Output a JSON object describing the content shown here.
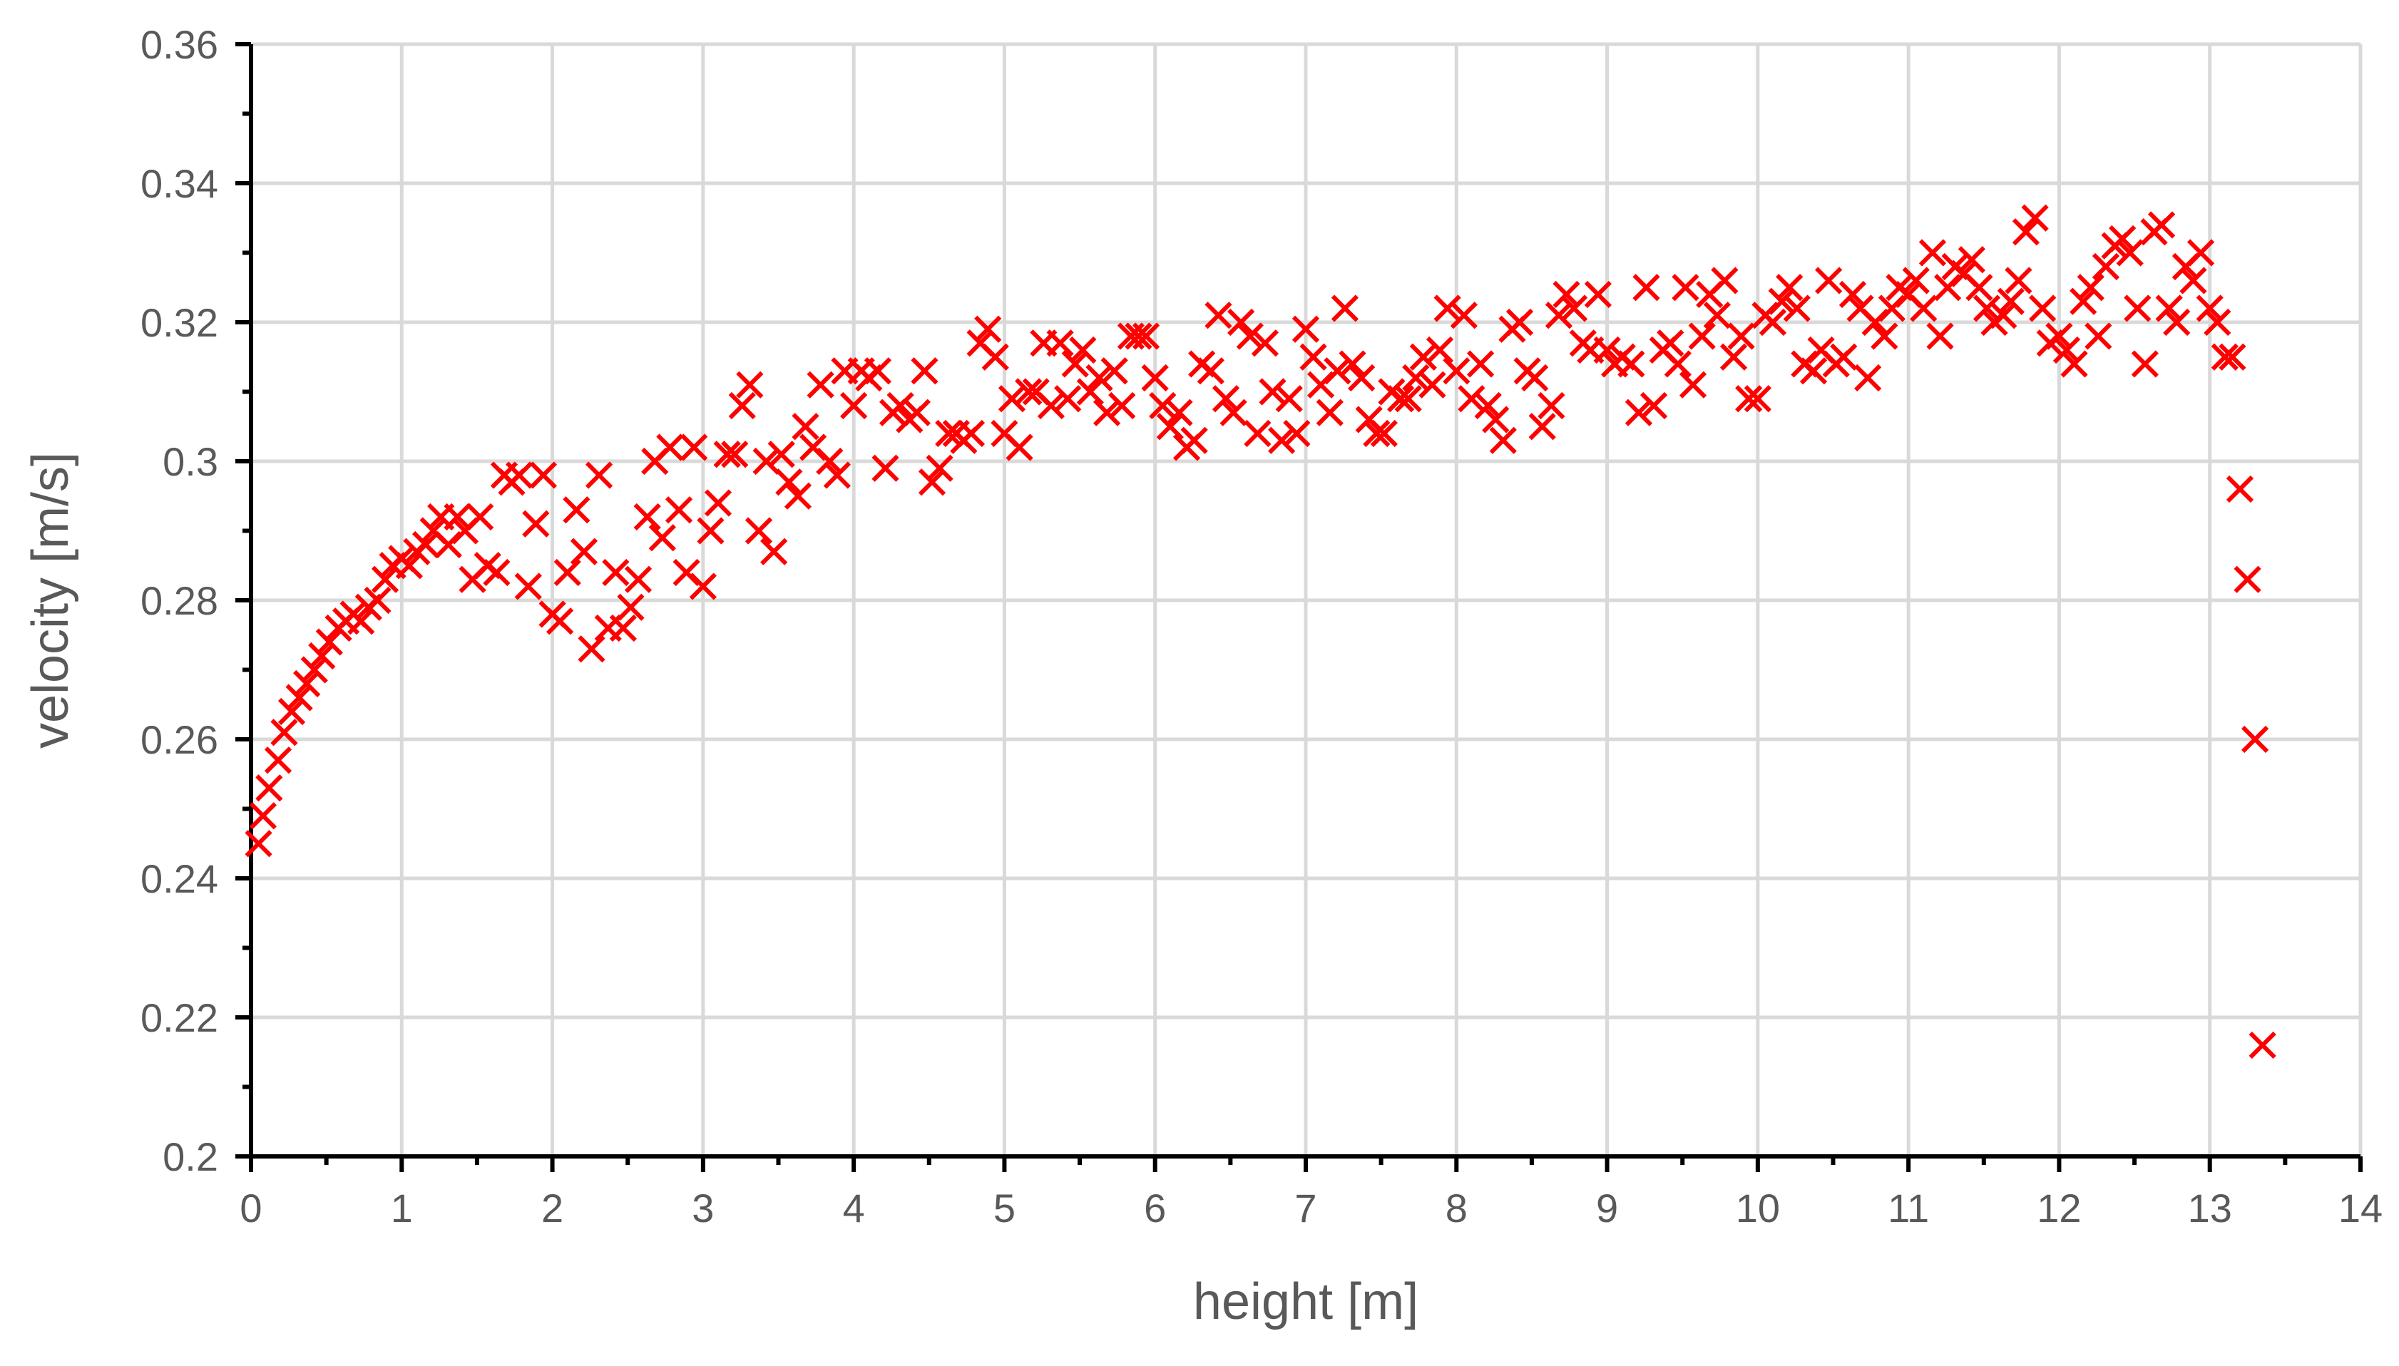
{
  "chart_data": {
    "type": "scatter",
    "xlabel": "height [m]",
    "ylabel": "velocity [m/s]",
    "xlim": [
      0,
      14
    ],
    "ylim": [
      0.2,
      0.36
    ],
    "xticks": [
      "0",
      "1",
      "2",
      "3",
      "4",
      "5",
      "6",
      "7",
      "8",
      "9",
      "10",
      "11",
      "12",
      "13",
      "14"
    ],
    "yticks": [
      "0.2",
      "0.22",
      "0.24",
      "0.26",
      "0.28",
      "0.3",
      "0.32",
      "0.34",
      "0.36"
    ],
    "grid": true,
    "marker": "x",
    "marker_color": "#ff0000",
    "series": [
      {
        "points": [
          [
            0.05,
            0.245
          ],
          [
            0.08,
            0.249
          ],
          [
            0.12,
            0.253
          ],
          [
            0.18,
            0.257
          ],
          [
            0.22,
            0.261
          ],
          [
            0.27,
            0.264
          ],
          [
            0.32,
            0.266
          ],
          [
            0.37,
            0.268
          ],
          [
            0.42,
            0.27
          ],
          [
            0.47,
            0.272
          ],
          [
            0.52,
            0.274
          ],
          [
            0.58,
            0.276
          ],
          [
            0.63,
            0.277
          ],
          [
            0.68,
            0.278
          ],
          [
            0.73,
            0.277
          ],
          [
            0.78,
            0.279
          ],
          [
            0.84,
            0.28
          ],
          [
            0.89,
            0.283
          ],
          [
            0.94,
            0.285
          ],
          [
            1.0,
            0.286
          ],
          [
            1.05,
            0.285
          ],
          [
            1.1,
            0.287
          ],
          [
            1.16,
            0.288
          ],
          [
            1.21,
            0.29
          ],
          [
            1.26,
            0.292
          ],
          [
            1.31,
            0.288
          ],
          [
            1.37,
            0.292
          ],
          [
            1.42,
            0.29
          ],
          [
            1.47,
            0.283
          ],
          [
            1.52,
            0.292
          ],
          [
            1.57,
            0.285
          ],
          [
            1.63,
            0.284
          ],
          [
            1.68,
            0.298
          ],
          [
            1.73,
            0.297
          ],
          [
            1.78,
            0.298
          ],
          [
            1.84,
            0.282
          ],
          [
            1.89,
            0.291
          ],
          [
            1.94,
            0.298
          ],
          [
            2.0,
            0.278
          ],
          [
            2.05,
            0.277
          ],
          [
            2.1,
            0.284
          ],
          [
            2.16,
            0.293
          ],
          [
            2.21,
            0.287
          ],
          [
            2.26,
            0.273
          ],
          [
            2.31,
            0.298
          ],
          [
            2.37,
            0.276
          ],
          [
            2.42,
            0.284
          ],
          [
            2.47,
            0.276
          ],
          [
            2.52,
            0.279
          ],
          [
            2.57,
            0.283
          ],
          [
            2.63,
            0.292
          ],
          [
            2.68,
            0.3
          ],
          [
            2.73,
            0.289
          ],
          [
            2.78,
            0.302
          ],
          [
            2.84,
            0.293
          ],
          [
            2.89,
            0.284
          ],
          [
            2.94,
            0.302
          ],
          [
            3.0,
            0.282
          ],
          [
            3.05,
            0.29
          ],
          [
            3.1,
            0.294
          ],
          [
            3.16,
            0.301
          ],
          [
            3.21,
            0.301
          ],
          [
            3.26,
            0.308
          ],
          [
            3.31,
            0.311
          ],
          [
            3.37,
            0.29
          ],
          [
            3.42,
            0.3
          ],
          [
            3.47,
            0.287
          ],
          [
            3.52,
            0.301
          ],
          [
            3.57,
            0.297
          ],
          [
            3.63,
            0.295
          ],
          [
            3.68,
            0.305
          ],
          [
            3.73,
            0.302
          ],
          [
            3.78,
            0.311
          ],
          [
            3.84,
            0.3
          ],
          [
            3.89,
            0.298
          ],
          [
            3.94,
            0.313
          ],
          [
            4.0,
            0.308
          ],
          [
            4.05,
            0.313
          ],
          [
            4.1,
            0.312
          ],
          [
            4.16,
            0.313
          ],
          [
            4.21,
            0.299
          ],
          [
            4.26,
            0.307
          ],
          [
            4.31,
            0.308
          ],
          [
            4.37,
            0.306
          ],
          [
            4.42,
            0.307
          ],
          [
            4.47,
            0.313
          ],
          [
            4.52,
            0.297
          ],
          [
            4.57,
            0.299
          ],
          [
            4.63,
            0.304
          ],
          [
            4.68,
            0.304
          ],
          [
            4.73,
            0.303
          ],
          [
            4.78,
            0.304
          ],
          [
            4.84,
            0.317
          ],
          [
            4.89,
            0.319
          ],
          [
            4.94,
            0.315
          ],
          [
            5.0,
            0.304
          ],
          [
            5.05,
            0.309
          ],
          [
            5.1,
            0.302
          ],
          [
            5.16,
            0.31
          ],
          [
            5.21,
            0.31
          ],
          [
            5.26,
            0.317
          ],
          [
            5.31,
            0.308
          ],
          [
            5.37,
            0.317
          ],
          [
            5.42,
            0.309
          ],
          [
            5.47,
            0.314
          ],
          [
            5.52,
            0.316
          ],
          [
            5.57,
            0.31
          ],
          [
            5.63,
            0.312
          ],
          [
            5.68,
            0.307
          ],
          [
            5.73,
            0.313
          ],
          [
            5.78,
            0.308
          ],
          [
            5.84,
            0.318
          ],
          [
            5.89,
            0.318
          ],
          [
            5.94,
            0.318
          ],
          [
            6.0,
            0.312
          ],
          [
            6.05,
            0.308
          ],
          [
            6.1,
            0.305
          ],
          [
            6.16,
            0.307
          ],
          [
            6.21,
            0.302
          ],
          [
            6.26,
            0.303
          ],
          [
            6.31,
            0.314
          ],
          [
            6.37,
            0.313
          ],
          [
            6.42,
            0.321
          ],
          [
            6.47,
            0.309
          ],
          [
            6.52,
            0.307
          ],
          [
            6.57,
            0.32
          ],
          [
            6.63,
            0.318
          ],
          [
            6.68,
            0.304
          ],
          [
            6.73,
            0.317
          ],
          [
            6.78,
            0.31
          ],
          [
            6.84,
            0.303
          ],
          [
            6.89,
            0.309
          ],
          [
            6.94,
            0.304
          ],
          [
            7.0,
            0.319
          ],
          [
            7.05,
            0.315
          ],
          [
            7.1,
            0.311
          ],
          [
            7.16,
            0.307
          ],
          [
            7.21,
            0.313
          ],
          [
            7.26,
            0.322
          ],
          [
            7.31,
            0.314
          ],
          [
            7.37,
            0.312
          ],
          [
            7.42,
            0.306
          ],
          [
            7.47,
            0.304
          ],
          [
            7.52,
            0.304
          ],
          [
            7.57,
            0.31
          ],
          [
            7.63,
            0.309
          ],
          [
            7.68,
            0.309
          ],
          [
            7.73,
            0.312
          ],
          [
            7.78,
            0.315
          ],
          [
            7.84,
            0.311
          ],
          [
            7.89,
            0.316
          ],
          [
            7.94,
            0.322
          ],
          [
            8.0,
            0.313
          ],
          [
            8.05,
            0.321
          ],
          [
            8.1,
            0.309
          ],
          [
            8.16,
            0.314
          ],
          [
            8.21,
            0.308
          ],
          [
            8.26,
            0.306
          ],
          [
            8.31,
            0.303
          ],
          [
            8.37,
            0.319
          ],
          [
            8.42,
            0.32
          ],
          [
            8.47,
            0.313
          ],
          [
            8.52,
            0.312
          ],
          [
            8.57,
            0.305
          ],
          [
            8.63,
            0.308
          ],
          [
            8.68,
            0.321
          ],
          [
            8.73,
            0.324
          ],
          [
            8.78,
            0.322
          ],
          [
            8.84,
            0.317
          ],
          [
            8.89,
            0.316
          ],
          [
            8.94,
            0.324
          ],
          [
            9.0,
            0.316
          ],
          [
            9.05,
            0.314
          ],
          [
            9.1,
            0.315
          ],
          [
            9.16,
            0.314
          ],
          [
            9.21,
            0.307
          ],
          [
            9.26,
            0.325
          ],
          [
            9.31,
            0.308
          ],
          [
            9.37,
            0.316
          ],
          [
            9.42,
            0.317
          ],
          [
            9.47,
            0.314
          ],
          [
            9.52,
            0.325
          ],
          [
            9.57,
            0.311
          ],
          [
            9.63,
            0.318
          ],
          [
            9.68,
            0.324
          ],
          [
            9.73,
            0.321
          ],
          [
            9.78,
            0.326
          ],
          [
            9.84,
            0.315
          ],
          [
            9.89,
            0.318
          ],
          [
            9.94,
            0.309
          ],
          [
            10.0,
            0.309
          ],
          [
            10.05,
            0.321
          ],
          [
            10.1,
            0.32
          ],
          [
            10.16,
            0.323
          ],
          [
            10.21,
            0.325
          ],
          [
            10.26,
            0.322
          ],
          [
            10.31,
            0.314
          ],
          [
            10.37,
            0.313
          ],
          [
            10.42,
            0.316
          ],
          [
            10.47,
            0.326
          ],
          [
            10.52,
            0.314
          ],
          [
            10.57,
            0.315
          ],
          [
            10.63,
            0.324
          ],
          [
            10.68,
            0.322
          ],
          [
            10.73,
            0.312
          ],
          [
            10.78,
            0.32
          ],
          [
            10.84,
            0.318
          ],
          [
            10.89,
            0.322
          ],
          [
            10.94,
            0.325
          ],
          [
            11.0,
            0.324
          ],
          [
            11.05,
            0.326
          ],
          [
            11.1,
            0.322
          ],
          [
            11.16,
            0.33
          ],
          [
            11.21,
            0.318
          ],
          [
            11.26,
            0.325
          ],
          [
            11.31,
            0.328
          ],
          [
            11.37,
            0.327
          ],
          [
            11.42,
            0.329
          ],
          [
            11.47,
            0.325
          ],
          [
            11.52,
            0.322
          ],
          [
            11.57,
            0.32
          ],
          [
            11.63,
            0.321
          ],
          [
            11.68,
            0.323
          ],
          [
            11.73,
            0.326
          ],
          [
            11.78,
            0.333
          ],
          [
            11.84,
            0.335
          ],
          [
            11.89,
            0.322
          ],
          [
            11.94,
            0.317
          ],
          [
            12.0,
            0.318
          ],
          [
            12.05,
            0.316
          ],
          [
            12.1,
            0.314
          ],
          [
            12.16,
            0.323
          ],
          [
            12.21,
            0.325
          ],
          [
            12.26,
            0.318
          ],
          [
            12.31,
            0.328
          ],
          [
            12.37,
            0.331
          ],
          [
            12.42,
            0.332
          ],
          [
            12.47,
            0.33
          ],
          [
            12.52,
            0.322
          ],
          [
            12.57,
            0.314
          ],
          [
            12.63,
            0.333
          ],
          [
            12.68,
            0.334
          ],
          [
            12.73,
            0.322
          ],
          [
            12.78,
            0.32
          ],
          [
            12.84,
            0.328
          ],
          [
            12.89,
            0.326
          ],
          [
            12.94,
            0.33
          ],
          [
            13.0,
            0.322
          ],
          [
            13.05,
            0.32
          ],
          [
            13.1,
            0.315
          ],
          [
            13.15,
            0.315
          ],
          [
            13.2,
            0.296
          ],
          [
            13.25,
            0.283
          ],
          [
            13.3,
            0.26
          ],
          [
            13.35,
            0.216
          ]
        ]
      }
    ]
  }
}
